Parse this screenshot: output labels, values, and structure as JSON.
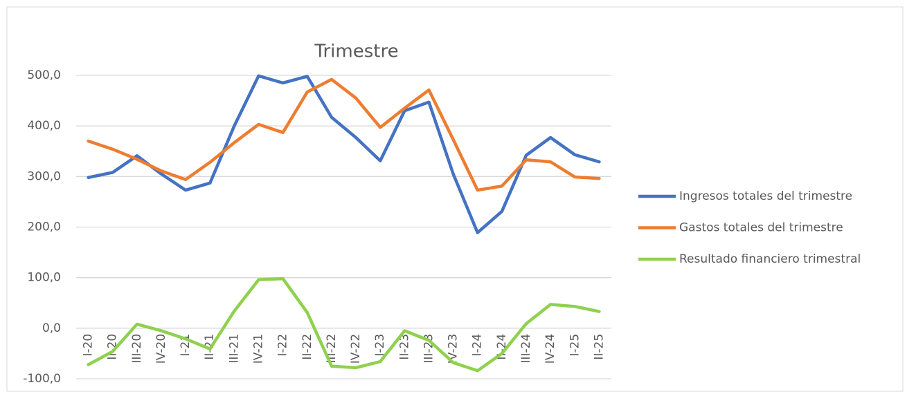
{
  "chart_data": {
    "type": "line",
    "title": "Trimestre",
    "categories": [
      "I-20",
      "II-20",
      "III-20",
      "IV-20",
      "I-21",
      "II-21",
      "III-21",
      "IV-21",
      "I-22",
      "II-22",
      "III-22",
      "IV-22",
      "I-23",
      "II-23",
      "III-23",
      "IV-23",
      "I-24",
      "II-24",
      "III-24",
      "IV-24",
      "I-25",
      "II-25"
    ],
    "series": [
      {
        "name": "Ingresos totales del trimestre",
        "color": "#4472c4",
        "values": [
          298,
          308,
          341,
          305,
          273,
          287,
          400,
          499,
          485,
          498,
          417,
          377,
          331,
          430,
          447,
          305,
          189,
          231,
          342,
          377,
          343,
          329
        ]
      },
      {
        "name": "Gastos totales del trimestre",
        "color": "#ed7d31",
        "values": [
          370,
          354,
          334,
          311,
          294,
          328,
          367,
          403,
          387,
          467,
          492,
          455,
          397,
          435,
          471,
          373,
          273,
          281,
          333,
          329,
          299,
          296
        ]
      },
      {
        "name": "Resultado financiero trimestral",
        "color": "#8fd14f",
        "values": [
          -72,
          -46,
          8,
          -5,
          -21,
          -41,
          34,
          96,
          98,
          31,
          -75,
          -78,
          -66,
          -5,
          -24,
          -68,
          -84,
          -50,
          9,
          47,
          43,
          33
        ]
      }
    ],
    "ylim": [
      -100,
      500
    ],
    "yticks": [
      {
        "value": -100,
        "label": "-100,0"
      },
      {
        "value": 0,
        "label": "0,0"
      },
      {
        "value": 100,
        "label": "100,0"
      },
      {
        "value": 200,
        "label": "200,0"
      },
      {
        "value": 300,
        "label": "300,0"
      },
      {
        "value": 400,
        "label": "400,0"
      },
      {
        "value": 500,
        "label": "500,0"
      }
    ],
    "grid": true,
    "legend": "right"
  }
}
